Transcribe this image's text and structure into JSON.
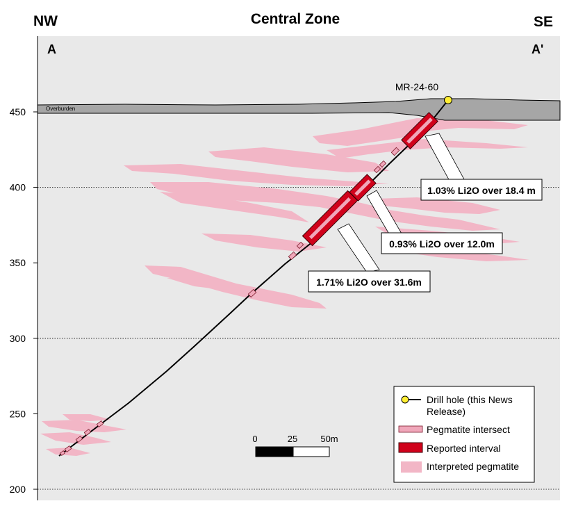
{
  "title": "Central Zone",
  "corners": {
    "left_direction": "NW",
    "right_direction": "SE",
    "left_section": "A",
    "right_section": "A'"
  },
  "y_axis": {
    "ticks": [
      "450",
      "400",
      "350",
      "300",
      "250",
      "200"
    ],
    "values": [
      450,
      400,
      350,
      300,
      250,
      200
    ],
    "gridlines_dotted_at": [
      400,
      300,
      200
    ]
  },
  "overburden_label": "Overburden",
  "drill_hole": {
    "name": "MR-24-60",
    "collar_elevation": 458,
    "bottom_elevation": 222
  },
  "intervals": [
    {
      "label": "1.03% Li2O over 18.4 m",
      "top_elev": 447,
      "bottom_elev": 431,
      "grade_pct": 1.03,
      "length_m": 18.4
    },
    {
      "label": "0.93% Li2O over 12.0m",
      "top_elev": 406,
      "bottom_elev": 396,
      "grade_pct": 0.93,
      "length_m": 12.0
    },
    {
      "label": "1.71% Li2O over 31.6m",
      "top_elev": 394,
      "bottom_elev": 370,
      "grade_pct": 1.71,
      "length_m": 31.6
    }
  ],
  "scale_bar": {
    "labels": [
      "0",
      "25",
      "50m"
    ]
  },
  "legend": {
    "items": [
      {
        "label": "Drill hole (this News Release)",
        "symbol": "drill-hole"
      },
      {
        "label": "Pegmatite intersect",
        "symbol": "pegmatite-intersect"
      },
      {
        "label": "Reported interval",
        "symbol": "reported-interval"
      },
      {
        "label": "Interpreted pegmatite",
        "symbol": "interpreted-pegmatite"
      }
    ]
  },
  "colors": {
    "background": "#e9e9e9",
    "overburden": "#a6a6a6",
    "interpreted_pegmatite": "#f2b6c6",
    "pegmatite_intersect": "#f0a7ba",
    "reported_interval": "#d0021b",
    "collar_marker": "#ffee33"
  }
}
